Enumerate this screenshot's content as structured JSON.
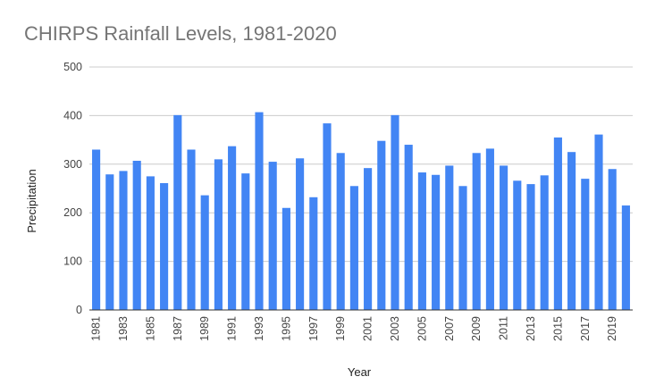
{
  "chart_data": {
    "type": "bar",
    "title": "CHIRPS Rainfall Levels, 1981-2020",
    "xlabel": "Year",
    "ylabel": "Precipitation",
    "ylim": [
      0,
      500
    ],
    "yticks": [
      0,
      100,
      200,
      300,
      400,
      500
    ],
    "grid": true,
    "legend": "none",
    "bar_color": "#4285f4",
    "categories": [
      "1981",
      "1982",
      "1983",
      "1984",
      "1985",
      "1986",
      "1987",
      "1988",
      "1989",
      "1990",
      "1991",
      "1992",
      "1993",
      "1994",
      "1995",
      "1996",
      "1997",
      "1998",
      "1999",
      "2000",
      "2001",
      "2002",
      "2003",
      "2004",
      "2005",
      "2006",
      "2007",
      "2008",
      "2009",
      "2010",
      "2011",
      "2012",
      "2013",
      "2014",
      "2015",
      "2016",
      "2017",
      "2018",
      "2019",
      "2020"
    ],
    "xtick_labels": [
      "1981",
      "1983",
      "1985",
      "1987",
      "1989",
      "1991",
      "1993",
      "1995",
      "1997",
      "1999",
      "2001",
      "2003",
      "2005",
      "2007",
      "2009",
      "2011",
      "2013",
      "2015",
      "2017",
      "2019"
    ],
    "values": [
      330,
      279,
      286,
      307,
      275,
      261,
      401,
      330,
      236,
      310,
      337,
      281,
      407,
      305,
      210,
      312,
      232,
      384,
      323,
      255,
      292,
      348,
      401,
      340,
      283,
      278,
      297,
      255,
      323,
      332,
      297,
      266,
      259,
      277,
      355,
      325,
      270,
      361,
      290,
      215
    ]
  }
}
